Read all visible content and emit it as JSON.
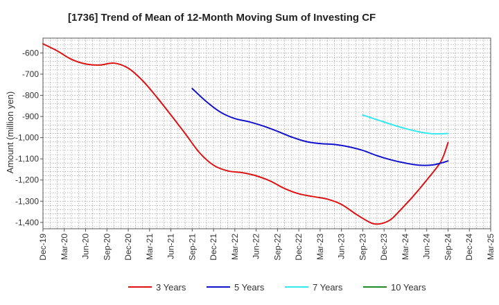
{
  "chart_data": {
    "type": "line",
    "title": "[1736]  Trend of Mean of 12-Month Moving Sum of Investing CF",
    "xlabel": "",
    "ylabel": "Amount (million yen)",
    "ylim": [
      -1430,
      -530
    ],
    "yticks": [
      -600,
      -700,
      -800,
      -900,
      -1000,
      -1100,
      -1200,
      -1300,
      -1400
    ],
    "ytick_labels": [
      "-600",
      "-700",
      "-800",
      "-900",
      "-1,000",
      "-1,100",
      "-1,200",
      "-1,300",
      "-1,400"
    ],
    "x_start": "Dec-19",
    "x_range_months": [
      0,
      63
    ],
    "xticks": [
      0,
      3,
      6,
      9,
      12,
      15,
      18,
      21,
      24,
      27,
      30,
      33,
      36,
      39,
      42,
      45,
      48,
      51,
      54,
      57,
      60,
      63
    ],
    "xtick_labels": [
      "Dec-19",
      "Mar-20",
      "Jun-20",
      "Sep-20",
      "Dec-20",
      "Mar-21",
      "Jun-21",
      "Sep-21",
      "Dec-21",
      "Mar-22",
      "Jun-22",
      "Sep-22",
      "Dec-22",
      "Mar-23",
      "Jun-23",
      "Sep-23",
      "Dec-23",
      "Mar-24",
      "Jun-24",
      "Sep-24",
      "Dec-24",
      "Mar-25"
    ],
    "grid": true,
    "legend_position": "bottom",
    "series": [
      {
        "name": "3 Years",
        "color": "#dd1111",
        "x": [
          0,
          2,
          4,
          6,
          8,
          10,
          12,
          14,
          16,
          18,
          20,
          22,
          24,
          26,
          28,
          30,
          32,
          34,
          36,
          38,
          40,
          42,
          44,
          46,
          47,
          48,
          49,
          50,
          52,
          54,
          56,
          57
        ],
        "values": [
          -557,
          -590,
          -630,
          -652,
          -657,
          -648,
          -672,
          -730,
          -808,
          -893,
          -980,
          -1070,
          -1130,
          -1157,
          -1165,
          -1180,
          -1205,
          -1240,
          -1265,
          -1278,
          -1290,
          -1315,
          -1360,
          -1400,
          -1408,
          -1402,
          -1385,
          -1352,
          -1280,
          -1200,
          -1112,
          -1023
        ]
      },
      {
        "name": "5 Years",
        "color": "#1111cc",
        "x": [
          21,
          23,
          25,
          27,
          29,
          31,
          33,
          35,
          37,
          39,
          41,
          43,
          45,
          47,
          49,
          51,
          53,
          55,
          57
        ],
        "values": [
          -768,
          -830,
          -880,
          -910,
          -925,
          -945,
          -970,
          -997,
          -1018,
          -1028,
          -1032,
          -1043,
          -1060,
          -1085,
          -1105,
          -1120,
          -1130,
          -1128,
          -1110
        ]
      },
      {
        "name": "7 Years",
        "color": "#33e8ee",
        "x": [
          45,
          47,
          49,
          51,
          53,
          55,
          57
        ],
        "values": [
          -893,
          -915,
          -937,
          -957,
          -973,
          -982,
          -980
        ]
      },
      {
        "name": "10 Years",
        "color": "#228822",
        "x": [],
        "values": []
      }
    ]
  }
}
